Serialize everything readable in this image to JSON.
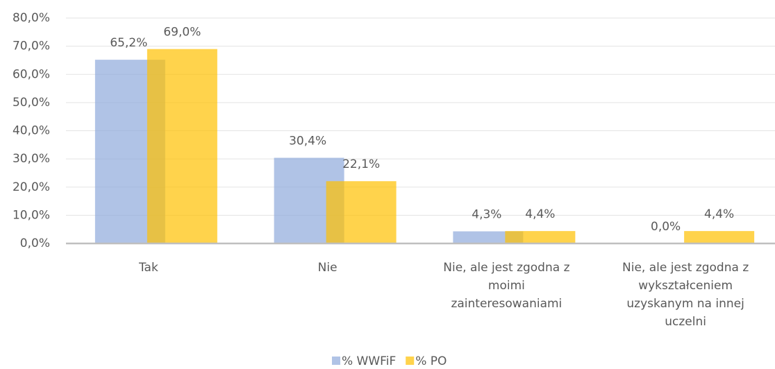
{
  "chart_data": {
    "type": "bar",
    "categories": [
      "Tak",
      "Nie",
      "Nie, ale jest zgodna z moimi zainteresowaniami",
      "Nie, ale jest zgodna z wykształceniem uzyskanym na innej uczelni"
    ],
    "series": [
      {
        "name": "% WWFiF",
        "color": "#8faadc",
        "values": [
          65.2,
          30.4,
          4.3,
          0.0
        ],
        "value_labels": [
          "65,2%",
          "30,4%",
          "4,3%",
          "0,0%"
        ]
      },
      {
        "name": "% PO",
        "color": "#ffc000",
        "values": [
          69.0,
          22.1,
          4.4,
          4.4
        ],
        "value_labels": [
          "69,0%",
          "22,1%",
          "4,4%",
          "4,4%"
        ]
      }
    ],
    "ylim": [
      0,
      80
    ],
    "yticks": [
      {
        "value": 0,
        "label": "0,0%"
      },
      {
        "value": 10,
        "label": "10,0%"
      },
      {
        "value": 20,
        "label": "20,0%"
      },
      {
        "value": 30,
        "label": "30,0%"
      },
      {
        "value": 40,
        "label": "40,0%"
      },
      {
        "value": 50,
        "label": "50,0%"
      },
      {
        "value": 60,
        "label": "60,0%"
      },
      {
        "value": 70,
        "label": "70,0%"
      },
      {
        "value": 80,
        "label": "80,0%"
      }
    ],
    "grid": true,
    "legend": "bottom"
  }
}
